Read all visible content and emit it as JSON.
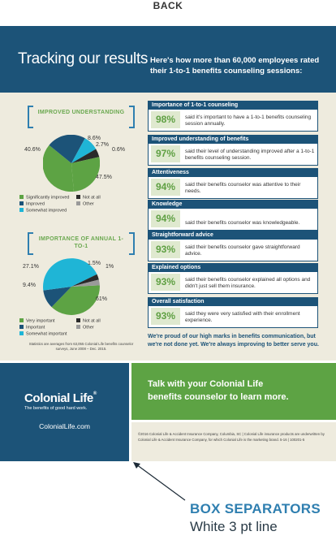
{
  "top_label": "BACK",
  "header": {
    "title": "Tracking our results",
    "desc": "Here's how more than 60,000 employees rated their 1-to-1 benefits counseling sessions:"
  },
  "charts": [
    {
      "title": "IMPROVED UNDERSTANDING",
      "pct_labels": [
        "8.6%",
        "2.7%",
        "0.6%",
        "40.6%",
        "47.5%"
      ],
      "legend": [
        "Significantly improved",
        "Improved",
        "Somewhat improved",
        "Not at all",
        "Other"
      ]
    },
    {
      "title": "IMPORTANCE OF ANNUAL 1-TO-1",
      "pct_labels": [
        "1.5%",
        "1%",
        "27.1%",
        "9.4%",
        "61%"
      ],
      "legend": [
        "Very important",
        "Important",
        "Somewhat important",
        "Not at all",
        "Other"
      ]
    }
  ],
  "stats_note": "Statistics are averages from 63,055 Colonial Life benefits counselor surveys, June 2008 – Dec. 2015.",
  "results": [
    {
      "head": "Importance of 1-to-1 counseling",
      "pct": "98%",
      "text": "said it's important to have a 1-to-1 benefits counseling session annually."
    },
    {
      "head": "Improved understanding of benefits",
      "pct": "97%",
      "text": "said their level of understanding improved after a 1-to-1 benefits counseling session."
    },
    {
      "head": "Attentiveness",
      "pct": "94%",
      "text": "said their benefits counselor was attentive to their needs."
    },
    {
      "head": "Knowledge",
      "pct": "94%",
      "text": "said their benefits counselor was knowledgeable."
    },
    {
      "head": "Straightforward advice",
      "pct": "93%",
      "text": "said their benefits counselor gave straightforward advice."
    },
    {
      "head": "Explained options",
      "pct": "93%",
      "text": "said their benefits counselor explained all options and didn't just sell them insurance."
    },
    {
      "head": "Overall satisfaction",
      "pct": "93%",
      "text": "said they were very satisfied with their enrollment experience."
    }
  ],
  "proud": "We're proud of our high marks in benefits communication, but we're not done yet. We're always improving to better serve you.",
  "logo": {
    "name": "Colonial Life",
    "tm": "®",
    "tag": "The benefits of good hard work.",
    "site": "ColonialLife.com"
  },
  "cta": {
    "line1": "Talk with your Colonial Life",
    "line2": "benefits counselor to learn more."
  },
  "copyright": "©2016 Colonial Life & Accident Insurance Company, Columbia, SC | Colonial Life insurance products are underwritten by Colonial Life & Accident Insurance Company, for which Colonial Life is the marketing brand.   5-16  |  100201-5",
  "annotation": {
    "line1": "BOX SEPARATORS",
    "line2": "White 3 pt line"
  },
  "colors": {
    "navy": "#1c5378",
    "green": "#5da344",
    "cyan": "#1fb5d6",
    "blue": "#2f7fb0",
    "beige": "#eeebde"
  }
}
